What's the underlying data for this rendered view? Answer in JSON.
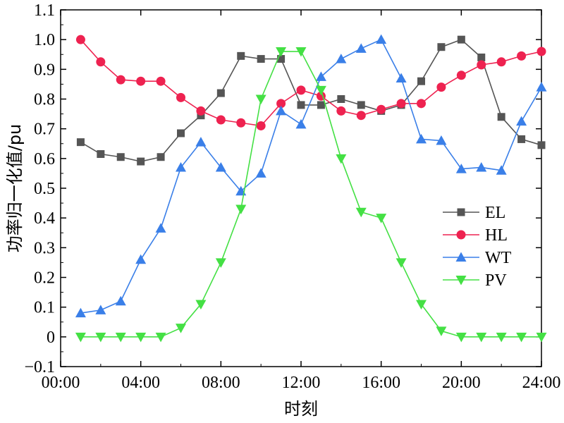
{
  "chart_data": {
    "type": "line",
    "xlabel": "时刻",
    "ylabel": "功率归一化值/pu",
    "xlim": [
      0,
      24
    ],
    "ylim": [
      -0.1,
      1.1
    ],
    "x_ticks": [
      0,
      4,
      8,
      12,
      16,
      20,
      24
    ],
    "x_tick_labels": [
      "00:00",
      "04:00",
      "08:00",
      "12:00",
      "16:00",
      "20:00",
      "24:00"
    ],
    "y_ticks": [
      -0.1,
      0.0,
      0.1,
      0.2,
      0.3,
      0.4,
      0.5,
      0.6,
      0.7,
      0.8,
      0.9,
      1.0,
      1.1
    ],
    "y_tick_labels": [
      "−0.1",
      "0",
      "0.1",
      "0.2",
      "0.3",
      "0.4",
      "0.5",
      "0.6",
      "0.7",
      "0.8",
      "0.9",
      "1.0",
      "1.1"
    ],
    "grid": false,
    "legend_position": "right",
    "x": [
      1,
      2,
      3,
      4,
      5,
      6,
      7,
      8,
      9,
      10,
      11,
      12,
      13,
      14,
      15,
      16,
      17,
      18,
      19,
      20,
      21,
      22,
      23,
      24
    ],
    "series": [
      {
        "name": "EL",
        "color": "#555555",
        "marker": "square",
        "values": [
          0.655,
          0.615,
          0.605,
          0.59,
          0.605,
          0.685,
          0.745,
          0.82,
          0.945,
          0.935,
          0.935,
          0.78,
          0.78,
          0.8,
          0.78,
          0.76,
          0.78,
          0.86,
          0.975,
          1.0,
          0.94,
          0.74,
          0.665,
          0.645
        ]
      },
      {
        "name": "HL",
        "color": "#ee2250",
        "marker": "circle",
        "values": [
          1.0,
          0.925,
          0.865,
          0.86,
          0.86,
          0.805,
          0.76,
          0.73,
          0.72,
          0.71,
          0.785,
          0.83,
          0.81,
          0.76,
          0.745,
          0.765,
          0.785,
          0.785,
          0.84,
          0.88,
          0.915,
          0.925,
          0.945,
          0.96
        ]
      },
      {
        "name": "WT",
        "color": "#3a7fe8",
        "marker": "triangle-up",
        "values": [
          0.08,
          0.09,
          0.12,
          0.26,
          0.365,
          0.57,
          0.655,
          0.57,
          0.49,
          0.55,
          0.76,
          0.715,
          0.875,
          0.935,
          0.97,
          1.0,
          0.87,
          0.665,
          0.66,
          0.565,
          0.57,
          0.56,
          0.725,
          0.84
        ]
      },
      {
        "name": "PV",
        "color": "#44e044",
        "marker": "triangle-down",
        "values": [
          0.0,
          0.0,
          0.0,
          0.0,
          0.0,
          0.03,
          0.11,
          0.25,
          0.43,
          0.8,
          0.96,
          0.96,
          0.83,
          0.6,
          0.42,
          0.4,
          0.25,
          0.11,
          0.02,
          0.0,
          0.0,
          0.0,
          0.0,
          0.0
        ]
      }
    ]
  }
}
